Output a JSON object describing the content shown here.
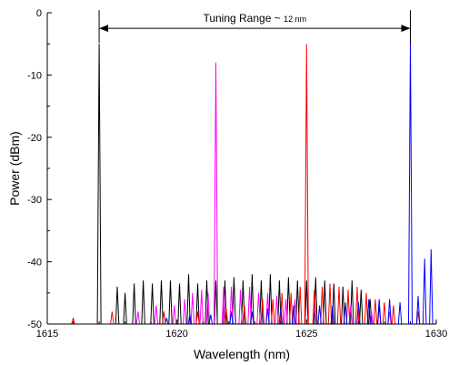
{
  "chart_data": {
    "type": "line",
    "title": "",
    "xlabel": "Wavelength (nm)",
    "ylabel": "Power (dBm)",
    "xlim": [
      1615,
      1630
    ],
    "ylim": [
      -50,
      0
    ],
    "xticks": [
      1615,
      1620,
      1625,
      1630
    ],
    "yticks": [
      0,
      -10,
      -20,
      -30,
      -40,
      -50
    ],
    "grid": false,
    "legend": "none",
    "annotation": {
      "text_main": "Tuning Range ~ ",
      "text_small": "12 nm",
      "from_x": 1617.0,
      "to_x": 1629.0,
      "y": -2.5
    },
    "series": [
      {
        "color": "#000000",
        "peak": [
          1617.0,
          -5
        ],
        "floor": -50,
        "side_modes": [
          [
            1617.7,
            -44
          ],
          [
            1618.0,
            -45
          ],
          [
            1618.35,
            -43.5
          ],
          [
            1618.7,
            -43
          ],
          [
            1619.05,
            -43.5
          ],
          [
            1619.4,
            -43
          ],
          [
            1619.75,
            -43
          ],
          [
            1620.1,
            -43.5
          ],
          [
            1620.45,
            -42
          ],
          [
            1620.8,
            -43.5
          ],
          [
            1621.15,
            -43
          ],
          [
            1621.5,
            -43
          ],
          [
            1621.85,
            -43
          ],
          [
            1622.2,
            -42.5
          ],
          [
            1622.55,
            -43
          ],
          [
            1622.9,
            -42
          ],
          [
            1623.25,
            -43
          ],
          [
            1623.6,
            -42
          ],
          [
            1623.95,
            -43
          ],
          [
            1624.3,
            -42.5
          ],
          [
            1624.65,
            -43
          ],
          [
            1625.0,
            -43
          ],
          [
            1625.35,
            -42.5
          ],
          [
            1625.7,
            -43
          ],
          [
            1626.05,
            -43.5
          ],
          [
            1626.4,
            -44
          ],
          [
            1626.75,
            -43
          ],
          [
            1627.1,
            -44.5
          ],
          [
            1627.45,
            -46
          ],
          [
            1627.8,
            -47
          ]
        ]
      },
      {
        "color": "#ff00ff",
        "peak": [
          1621.5,
          -8
        ],
        "floor": -50,
        "side_modes": [
          [
            1618.5,
            -48
          ],
          [
            1619.2,
            -47
          ],
          [
            1619.9,
            -47
          ],
          [
            1620.3,
            -46
          ],
          [
            1620.6,
            -45
          ],
          [
            1620.95,
            -44.5
          ],
          [
            1621.2,
            -45
          ],
          [
            1621.8,
            -44
          ],
          [
            1622.1,
            -44
          ],
          [
            1622.45,
            -44.5
          ],
          [
            1622.8,
            -44
          ],
          [
            1623.15,
            -45
          ],
          [
            1623.5,
            -45
          ],
          [
            1623.85,
            -45.5
          ],
          [
            1624.2,
            -46
          ],
          [
            1624.55,
            -46
          ],
          [
            1625.3,
            -47
          ],
          [
            1626.0,
            -47.5
          ],
          [
            1626.7,
            -47
          ],
          [
            1627.5,
            -48
          ],
          [
            1628.2,
            -48
          ]
        ]
      },
      {
        "color": "#ff0000",
        "peak": [
          1625.0,
          -5
        ],
        "floor": -50,
        "side_modes": [
          [
            1616.0,
            -49
          ],
          [
            1617.5,
            -48
          ],
          [
            1619.5,
            -48
          ],
          [
            1620.8,
            -48
          ],
          [
            1621.9,
            -47.5
          ],
          [
            1622.6,
            -47
          ],
          [
            1623.3,
            -46
          ],
          [
            1623.7,
            -46
          ],
          [
            1624.05,
            -45
          ],
          [
            1624.4,
            -45
          ],
          [
            1624.75,
            -44
          ],
          [
            1625.3,
            -44.5
          ],
          [
            1625.6,
            -44
          ],
          [
            1625.9,
            -43.5
          ],
          [
            1626.25,
            -44
          ],
          [
            1626.6,
            -44.5
          ],
          [
            1626.95,
            -44
          ],
          [
            1627.3,
            -45
          ],
          [
            1627.65,
            -46
          ],
          [
            1628.0,
            -46.5
          ],
          [
            1628.35,
            -47
          ],
          [
            1629.3,
            -48
          ]
        ]
      },
      {
        "color": "#0000ff",
        "peak": [
          1629.0,
          -4.5
        ],
        "floor": -50,
        "side_modes": [
          [
            1619.6,
            -49
          ],
          [
            1620.5,
            -48.5
          ],
          [
            1621.3,
            -48.5
          ],
          [
            1622.1,
            -48
          ],
          [
            1622.9,
            -48
          ],
          [
            1623.5,
            -47.5
          ],
          [
            1624.0,
            -47.5
          ],
          [
            1624.5,
            -47
          ],
          [
            1625.5,
            -47
          ],
          [
            1626.0,
            -47
          ],
          [
            1626.5,
            -46.5
          ],
          [
            1627.0,
            -46.5
          ],
          [
            1627.4,
            -46
          ],
          [
            1627.8,
            -46
          ],
          [
            1628.2,
            -46
          ],
          [
            1628.6,
            -46.5
          ],
          [
            1629.3,
            -45.5
          ],
          [
            1629.55,
            -39.5
          ],
          [
            1629.8,
            -38
          ]
        ]
      }
    ]
  }
}
